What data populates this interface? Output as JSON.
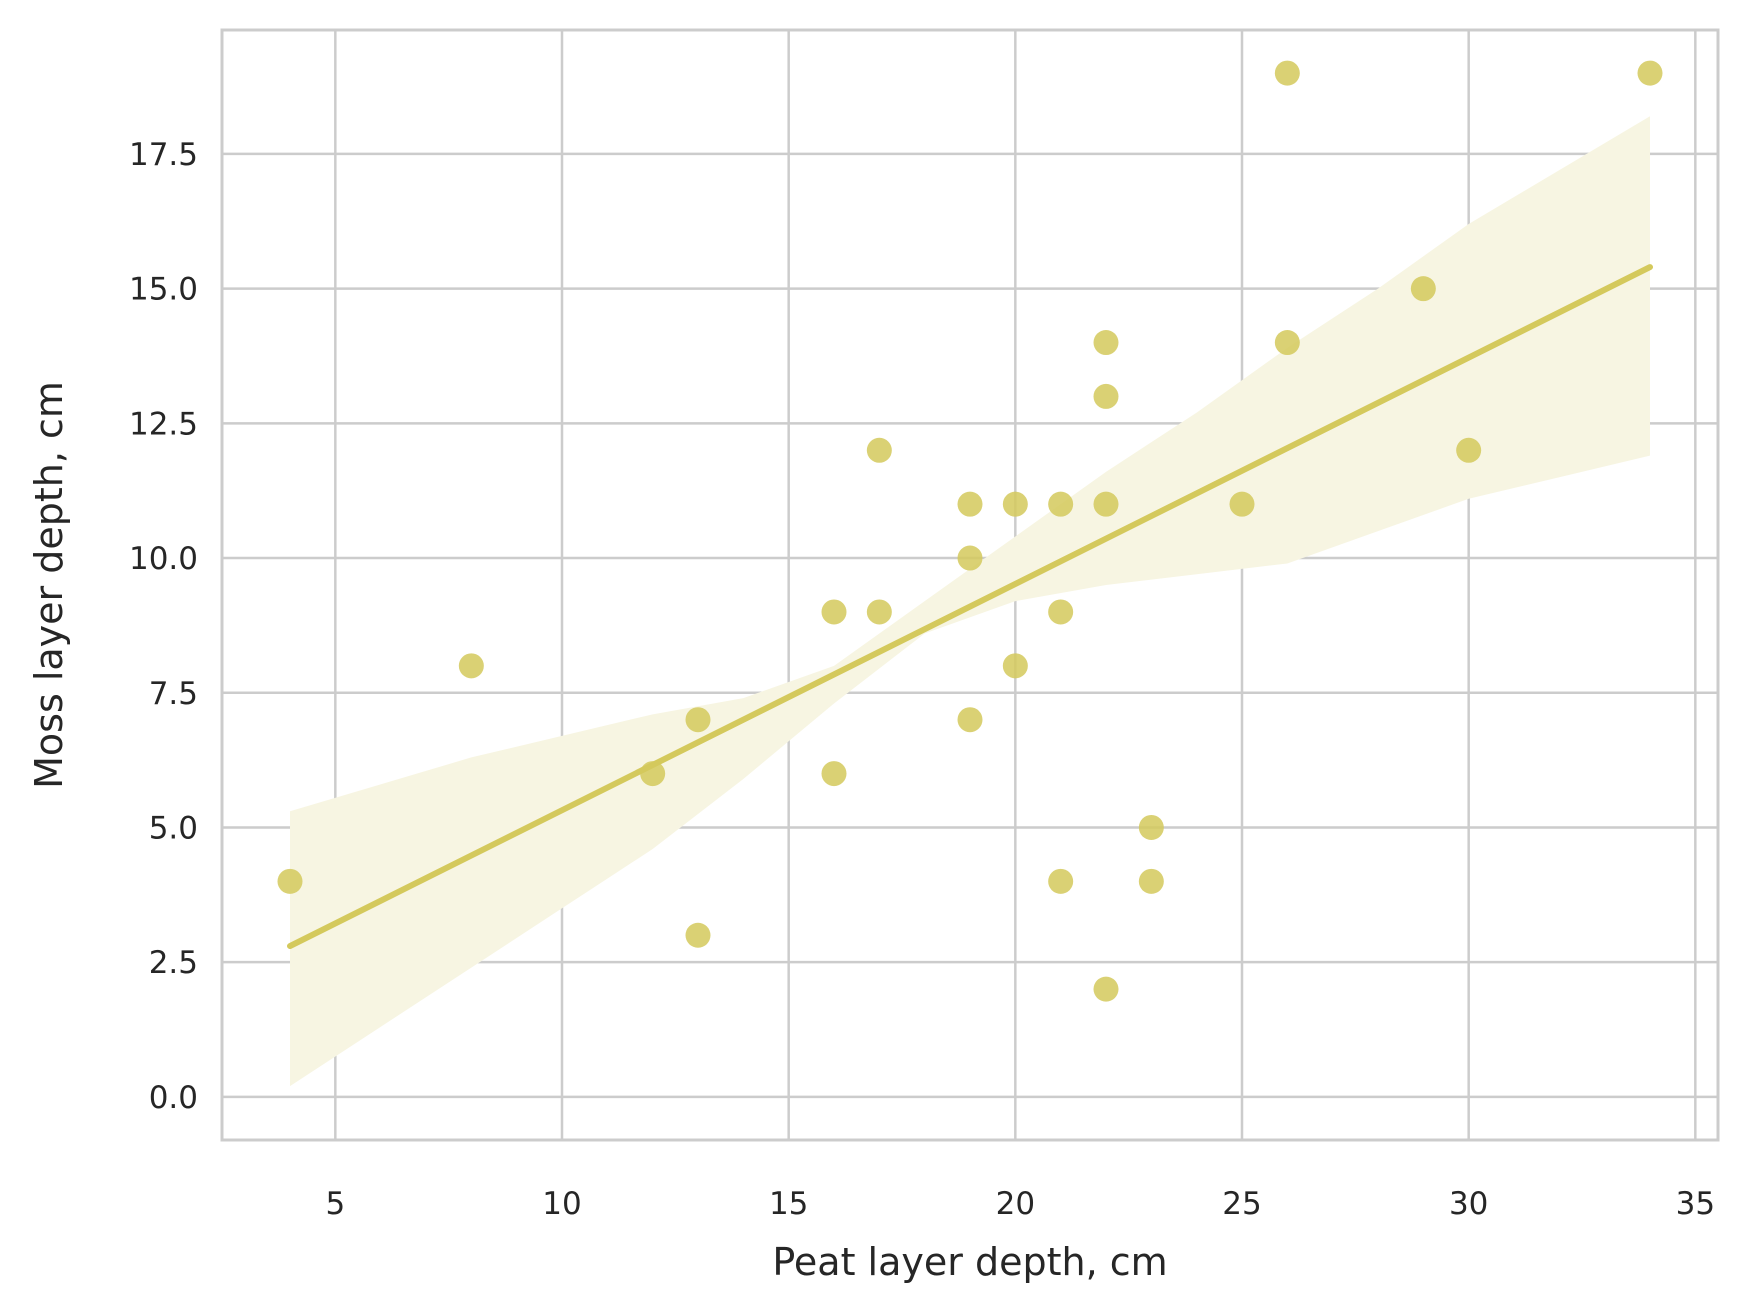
{
  "chart_data": {
    "type": "scatter",
    "title": "",
    "xlabel": "Peat layer depth, cm",
    "ylabel": "Moss layer depth, cm",
    "xlim": [
      2.5,
      35.5
    ],
    "ylim": [
      -0.8,
      19.8
    ],
    "x_ticks": [
      5,
      10,
      15,
      20,
      25,
      30,
      35
    ],
    "x_tick_labels": [
      "5",
      "10",
      "15",
      "20",
      "25",
      "30",
      "35"
    ],
    "y_ticks": [
      0,
      2.5,
      5,
      7.5,
      10,
      12.5,
      15,
      17.5
    ],
    "y_tick_labels": [
      "0.0",
      "2.5",
      "5.0",
      "7.5",
      "10.0",
      "12.5",
      "15.0",
      "17.5"
    ],
    "grid": true,
    "colors": {
      "points": "#d4c95c",
      "line": "#d4c95c",
      "band": "#f7f5e2",
      "grid": "#cccccc",
      "frame": "#cccccc"
    },
    "points": [
      {
        "x": 4,
        "y": 4
      },
      {
        "x": 8,
        "y": 8
      },
      {
        "x": 12,
        "y": 6
      },
      {
        "x": 13,
        "y": 7
      },
      {
        "x": 13,
        "y": 3
      },
      {
        "x": 16,
        "y": 9
      },
      {
        "x": 16,
        "y": 6
      },
      {
        "x": 17,
        "y": 12
      },
      {
        "x": 17,
        "y": 9
      },
      {
        "x": 19,
        "y": 11
      },
      {
        "x": 19,
        "y": 10
      },
      {
        "x": 19,
        "y": 7
      },
      {
        "x": 20,
        "y": 11
      },
      {
        "x": 20,
        "y": 8
      },
      {
        "x": 21,
        "y": 11
      },
      {
        "x": 21,
        "y": 9
      },
      {
        "x": 21,
        "y": 4
      },
      {
        "x": 22,
        "y": 14
      },
      {
        "x": 22,
        "y": 13
      },
      {
        "x": 22,
        "y": 11
      },
      {
        "x": 22,
        "y": 2
      },
      {
        "x": 23,
        "y": 5
      },
      {
        "x": 23,
        "y": 4
      },
      {
        "x": 25,
        "y": 11
      },
      {
        "x": 26,
        "y": 19
      },
      {
        "x": 26,
        "y": 14
      },
      {
        "x": 29,
        "y": 15
      },
      {
        "x": 30,
        "y": 12
      },
      {
        "x": 34,
        "y": 19
      }
    ],
    "regression_line": {
      "x": [
        4,
        34
      ],
      "y": [
        2.8,
        15.4
      ]
    },
    "confidence_band": {
      "x": [
        4,
        6,
        8,
        10,
        12,
        14,
        16,
        18,
        20,
        22,
        24,
        26,
        28,
        30,
        32,
        34
      ],
      "lower": [
        0.2,
        1.3,
        2.4,
        3.5,
        4.6,
        5.9,
        7.3,
        8.6,
        9.2,
        9.5,
        9.7,
        9.9,
        10.5,
        11.1,
        11.5,
        11.9
      ],
      "upper": [
        5.3,
        5.8,
        6.3,
        6.7,
        7.1,
        7.4,
        8.0,
        9.2,
        10.4,
        11.6,
        12.7,
        13.9,
        15.0,
        16.2,
        17.2,
        18.2
      ]
    }
  }
}
